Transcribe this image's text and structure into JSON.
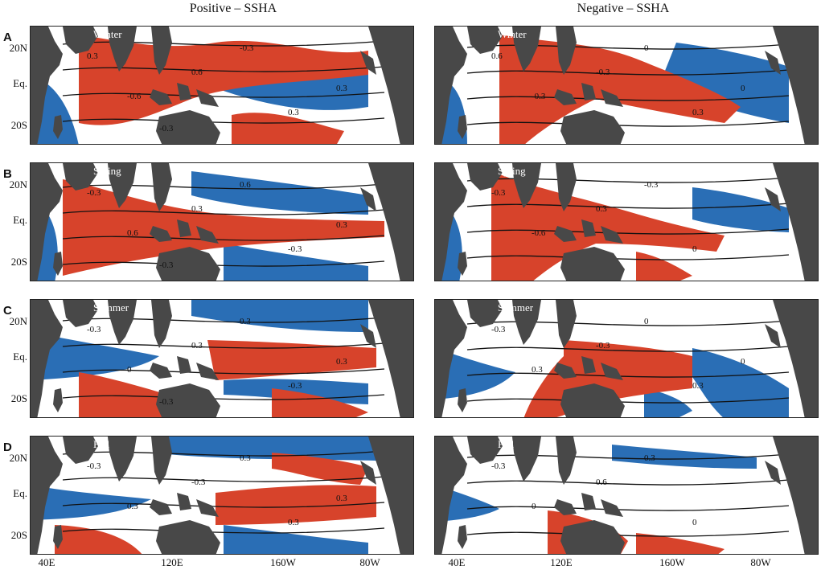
{
  "figure": {
    "left_title": "Positive – SSHA",
    "right_title": "Negative – SSHA",
    "colors": {
      "positive": "#d7432b",
      "negative": "#2a6eb5",
      "land": "#484848",
      "contour": "#111111"
    },
    "lat_labels": [
      "20N",
      "Eq.",
      "20S"
    ],
    "lon_labels": [
      "40E",
      "120E",
      "160W",
      "80W"
    ]
  },
  "rows": [
    {
      "letter": "A",
      "season": "Winter"
    },
    {
      "letter": "B",
      "season": "Spring"
    },
    {
      "letter": "C",
      "season": "Summer"
    },
    {
      "letter": "D",
      "season": "Fall"
    }
  ],
  "contour_labels": {
    "A-left": [
      "0.3",
      "-0.6",
      "0.6",
      "-0.3",
      "0.3",
      "0.3",
      "-0.3"
    ],
    "A-right": [
      "0.6",
      "-0.3",
      "-0.3",
      "0",
      "0.3",
      "0"
    ],
    "B-left": [
      "-0.3",
      "0.6",
      "0.3",
      "0.6",
      "-0.3",
      "0.3",
      "-0.3"
    ],
    "B-right": [
      "-0.3",
      "-0.6",
      "0.3",
      "-0.3",
      "0"
    ],
    "C-left": [
      "-0.3",
      "0",
      "0.3",
      "0.3",
      "-0.3",
      "0.3",
      "-0.3"
    ],
    "C-right": [
      "-0.3",
      "0.3",
      "-0.3",
      "0",
      "0.3",
      "0"
    ],
    "D-left": [
      "-0.3",
      "0.3",
      "-0.3",
      "0.3",
      "0.3",
      "0.3"
    ],
    "D-right": [
      "-0.3",
      "0",
      "0.6",
      "0.3",
      "0"
    ]
  }
}
